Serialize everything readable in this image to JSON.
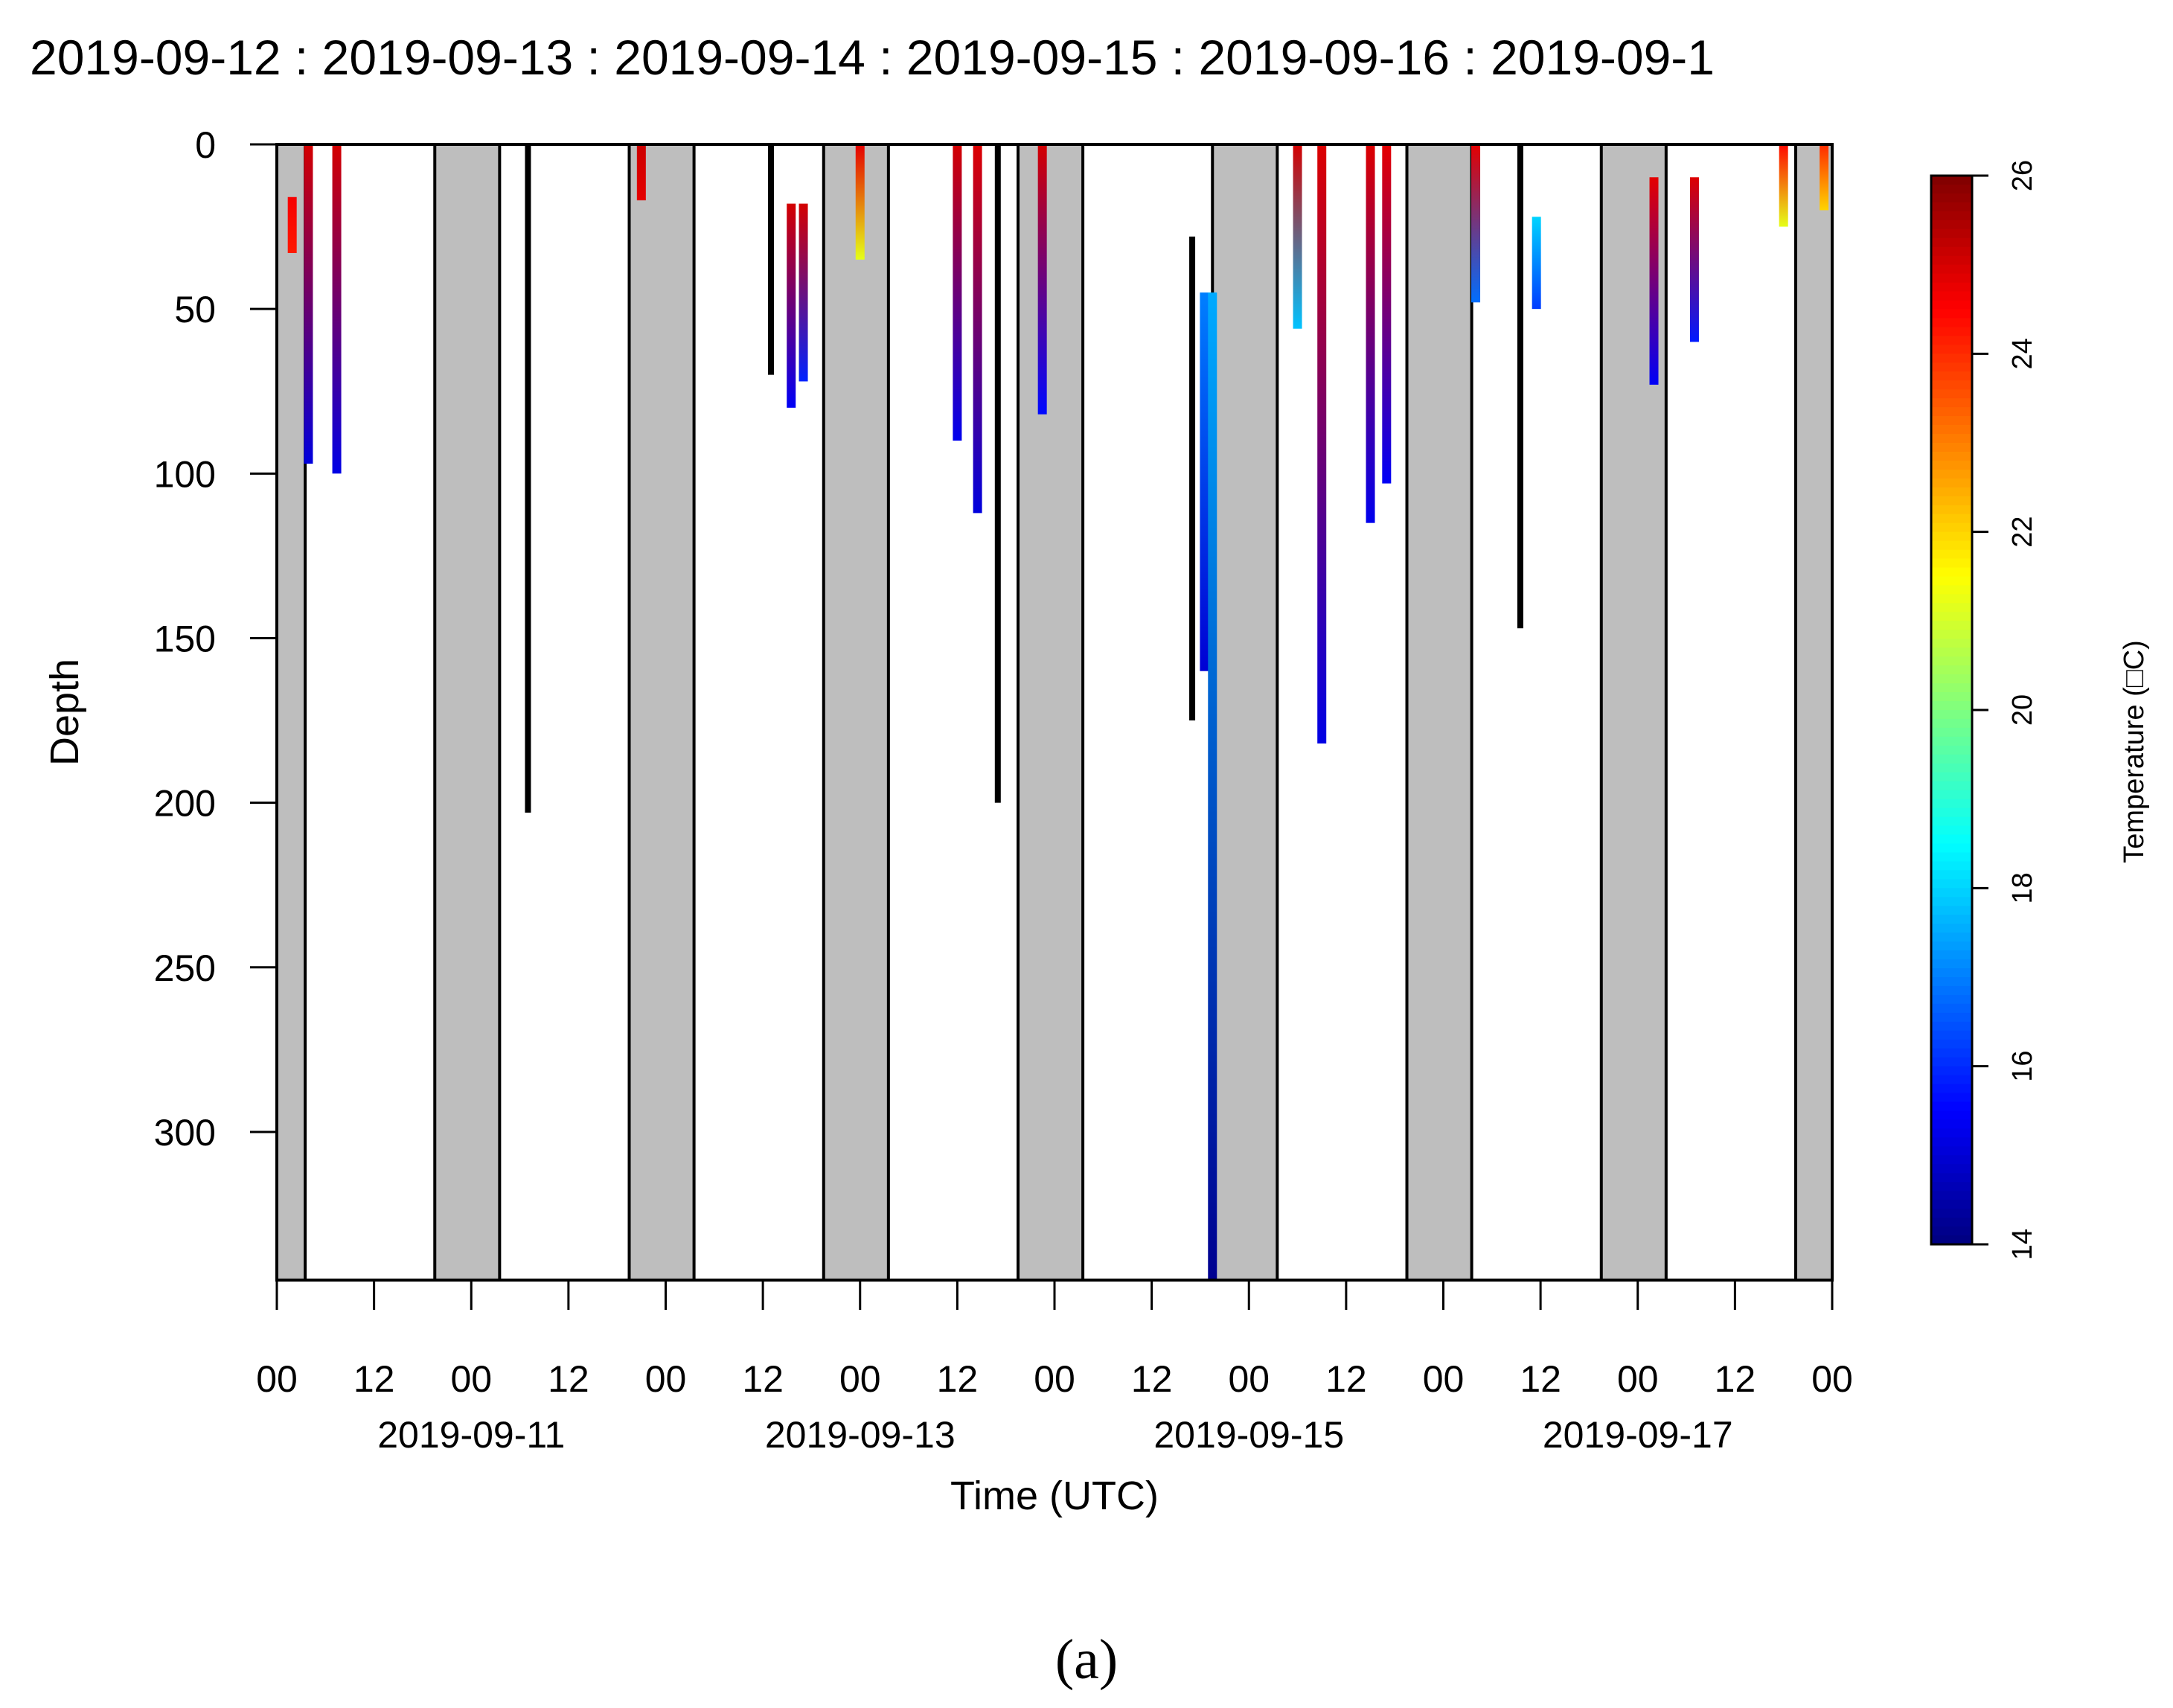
{
  "top_title": "2019-09-12 : 2019-09-13 : 2019-09-14 : 2019-09-15 : 2019-09-16 : 2019-09-1",
  "caption": "(a)",
  "colors": {
    "night_fill": "#bebebe",
    "unrecorded_depth": "#000000",
    "colormap": [
      "#00007f",
      "#0000ff",
      "#007fff",
      "#00ffff",
      "#7fff7f",
      "#ffff00",
      "#ff7f00",
      "#ff0000",
      "#7f0000"
    ]
  },
  "chart_data": {
    "type": "area",
    "xlabel": "Time (UTC)",
    "ylabel": "Depth",
    "colorbar_label": "Temperature (□C)",
    "x_domain_hours_from_2019_09_10_00": [
      0,
      192
    ],
    "xlim": [
      "2019-09-10 00:00",
      "2019-09-18 00:00"
    ],
    "ylim": [
      0,
      345
    ],
    "y_reversed": true,
    "x_ticks": [
      "00",
      "12",
      "00",
      "12",
      "00",
      "12",
      "00",
      "12",
      "00",
      "12",
      "00",
      "12",
      "00",
      "12",
      "00",
      "12",
      "00"
    ],
    "x_date_labels": [
      {
        "label": "2019-09-11",
        "at": "2019-09-11 00:00"
      },
      {
        "label": "2019-09-13",
        "at": "2019-09-13 00:00"
      },
      {
        "label": "2019-09-15",
        "at": "2019-09-15 00:00"
      },
      {
        "label": "2019-09-17",
        "at": "2019-09-17 00:00"
      }
    ],
    "y_ticks": [
      0,
      50,
      100,
      150,
      200,
      250,
      300
    ],
    "colorbar_ticks": [
      14,
      16,
      18,
      20,
      22,
      24,
      26
    ],
    "colorbar_range": [
      14,
      26
    ],
    "night_shading_hours": [
      [
        0,
        3.5
      ],
      [
        19.5,
        27.5
      ],
      [
        43.5,
        51.5
      ],
      [
        67.5,
        75.5
      ],
      [
        91.5,
        99.5
      ],
      [
        115.5,
        123.5
      ],
      [
        139.5,
        147.5
      ],
      [
        163.5,
        171.5
      ],
      [
        187.5,
        192
      ]
    ],
    "dive_profiles_min_depth_temp": [
      {
        "t": 1.9,
        "depth_min": 16,
        "depth_max": 33,
        "temp_top": 24.6,
        "temp_bottom": 24.2
      },
      {
        "t": 3.9,
        "depth_min": 0,
        "depth_max": 97,
        "temp_top": 25.0,
        "temp_bottom": 15.1
      },
      {
        "t": 7.4,
        "depth_min": 0,
        "depth_max": 100,
        "temp_top": 25.0,
        "temp_bottom": 15.2
      },
      {
        "t": 31.0,
        "depth_min": 0,
        "depth_max": 203,
        "temp_top": null,
        "temp_bottom": null
      },
      {
        "t": 45.0,
        "depth_min": 0,
        "depth_max": 17,
        "temp_top": 25.1,
        "temp_bottom": 24.8
      },
      {
        "t": 61.0,
        "depth_min": 0,
        "depth_max": 70,
        "temp_top": null,
        "temp_bottom": null
      },
      {
        "t": 63.5,
        "depth_min": 18,
        "depth_max": 80,
        "temp_top": 25.0,
        "temp_bottom": 15.4
      },
      {
        "t": 65.0,
        "depth_min": 18,
        "depth_max": 72,
        "temp_top": 25.0,
        "temp_bottom": 15.9
      },
      {
        "t": 72.0,
        "depth_min": 0,
        "depth_max": 35,
        "temp_top": 24.8,
        "temp_bottom": 21.2
      },
      {
        "t": 84.0,
        "depth_min": 0,
        "depth_max": 90,
        "temp_top": 25.0,
        "temp_bottom": 15.3
      },
      {
        "t": 86.5,
        "depth_min": 0,
        "depth_max": 112,
        "temp_top": 24.9,
        "temp_bottom": 15.1
      },
      {
        "t": 89.0,
        "depth_min": 0,
        "depth_max": 200,
        "temp_top": null,
        "temp_bottom": null
      },
      {
        "t": 94.5,
        "depth_min": 0,
        "depth_max": 82,
        "temp_top": 25.0,
        "temp_bottom": 15.6
      },
      {
        "t": 113.0,
        "depth_min": 28,
        "depth_max": 175,
        "temp_top": null,
        "temp_bottom": null
      },
      {
        "t": 114.5,
        "depth_min": 45,
        "depth_max": 160,
        "temp_top": 17.0,
        "temp_bottom": 15.0
      },
      {
        "t": 115.5,
        "depth_min": 45,
        "depth_max": 345,
        "temp_top": 17.5,
        "temp_bottom": 14.2
      },
      {
        "t": 126.0,
        "depth_min": 0,
        "depth_max": 56,
        "temp_top": 25.0,
        "temp_bottom": 17.8
      },
      {
        "t": 129.0,
        "depth_min": 0,
        "depth_max": 182,
        "temp_top": 24.9,
        "temp_bottom": 15.2
      },
      {
        "t": 135.0,
        "depth_min": 0,
        "depth_max": 115,
        "temp_top": 24.9,
        "temp_bottom": 15.3
      },
      {
        "t": 137.0,
        "depth_min": 0,
        "depth_max": 103,
        "temp_top": 24.8,
        "temp_bottom": 15.4
      },
      {
        "t": 148.0,
        "depth_min": 0,
        "depth_max": 48,
        "temp_top": 24.8,
        "temp_bottom": 16.8
      },
      {
        "t": 153.5,
        "depth_min": 0,
        "depth_max": 147,
        "temp_top": null,
        "temp_bottom": null
      },
      {
        "t": 155.5,
        "depth_min": 22,
        "depth_max": 50,
        "temp_top": 18.0,
        "temp_bottom": 16.2
      },
      {
        "t": 170.0,
        "depth_min": 10,
        "depth_max": 73,
        "temp_top": 24.8,
        "temp_bottom": 15.4
      },
      {
        "t": 175.0,
        "depth_min": 10,
        "depth_max": 60,
        "temp_top": 24.9,
        "temp_bottom": 15.8
      },
      {
        "t": 186.0,
        "depth_min": 0,
        "depth_max": 25,
        "temp_top": 24.4,
        "temp_bottom": 21.2
      },
      {
        "t": 191.0,
        "depth_min": 0,
        "depth_max": 20,
        "temp_top": 24.0,
        "temp_bottom": 22.0
      }
    ],
    "grid": false,
    "legend": "colorbar-right"
  }
}
